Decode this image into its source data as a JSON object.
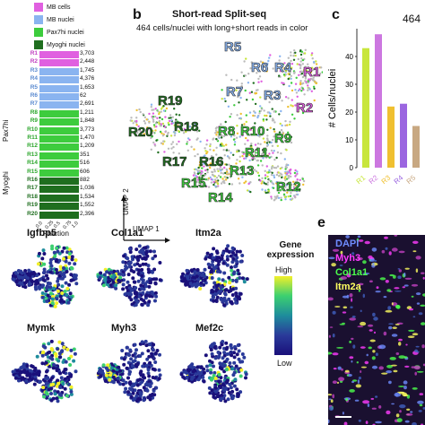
{
  "legend": [
    {
      "label": "MB cells",
      "color": "#e060e0"
    },
    {
      "label": "MB nuclei",
      "color": "#8ab4f0"
    },
    {
      "label": "Pax7hi nuclei",
      "color": "#3dcc3d"
    },
    {
      "label": "Myoghi nuclei",
      "color": "#1f6e1f"
    }
  ],
  "panel_a": {
    "rows": [
      {
        "label": "R1",
        "count": "3,703",
        "color": "#e060e0"
      },
      {
        "label": "R2",
        "count": "2,448",
        "color": "#e060e0"
      },
      {
        "label": "R3",
        "count": "1,745",
        "color": "#8ab4f0"
      },
      {
        "label": "R4",
        "count": "4,376",
        "color": "#8ab4f0"
      },
      {
        "label": "R5",
        "count": "1,653",
        "color": "#8ab4f0"
      },
      {
        "label": "R6",
        "count": "62",
        "color": "#8ab4f0"
      },
      {
        "label": "R7",
        "count": "2,691",
        "color": "#8ab4f0"
      },
      {
        "label": "R8",
        "count": "1,211",
        "color": "#3dcc3d"
      },
      {
        "label": "R9",
        "count": "1,848",
        "color": "#3dcc3d"
      },
      {
        "label": "R10",
        "count": "3,773",
        "color": "#3dcc3d"
      },
      {
        "label": "R11",
        "count": "1,470",
        "color": "#3dcc3d"
      },
      {
        "label": "R12",
        "count": "1,209",
        "color": "#3dcc3d"
      },
      {
        "label": "R13",
        "count": "351",
        "color": "#3dcc3d"
      },
      {
        "label": "R14",
        "count": "516",
        "color": "#3dcc3d"
      },
      {
        "label": "R15",
        "count": "606",
        "color": "#3dcc3d"
      },
      {
        "label": "R16",
        "count": "882",
        "color": "#1f6e1f"
      },
      {
        "label": "R17",
        "count": "1,036",
        "color": "#1f6e1f"
      },
      {
        "label": "R18",
        "count": "1,534",
        "color": "#1f6e1f"
      },
      {
        "label": "R19",
        "count": "1,552",
        "color": "#1f6e1f"
      },
      {
        "label": "R20",
        "count": "2,396",
        "color": "#1f6e1f"
      }
    ],
    "group_pax7": "Pax7hi",
    "group_myog": "Myoghi",
    "xticks": [
      "0.0",
      "0.25",
      "0.5",
      "0.75",
      "1.0"
    ],
    "xlabel": "Fraction"
  },
  "panel_b": {
    "letter": "b",
    "title": "Short-read Split-seq",
    "subtitle": "464 cells/nuclei with long+short reads in color",
    "umap1": "UMAP 1",
    "umap2": "UMAP 2",
    "cluster_labels": [
      {
        "label": "R1",
        "color": "#e060e0"
      },
      {
        "label": "R2",
        "color": "#e060e0"
      },
      {
        "label": "R3",
        "color": "#8ab4f0"
      },
      {
        "label": "R4",
        "color": "#8ab4f0"
      },
      {
        "label": "R5",
        "color": "#8ab4f0"
      },
      {
        "label": "R6",
        "color": "#8ab4f0"
      },
      {
        "label": "R7",
        "color": "#8ab4f0"
      },
      {
        "label": "R8",
        "color": "#3dcc3d"
      },
      {
        "label": "R9",
        "color": "#3dcc3d"
      },
      {
        "label": "R10",
        "color": "#3dcc3d"
      },
      {
        "label": "R11",
        "color": "#3dcc3d"
      },
      {
        "label": "R12",
        "color": "#3dcc3d"
      },
      {
        "label": "R13",
        "color": "#3dcc3d"
      },
      {
        "label": "R14",
        "color": "#3dcc3d"
      },
      {
        "label": "R15",
        "color": "#3dcc3d"
      },
      {
        "label": "R16",
        "color": "#1f6e1f"
      },
      {
        "label": "R17",
        "color": "#1f6e1f"
      },
      {
        "label": "R18",
        "color": "#1f6e1f"
      },
      {
        "label": "R19",
        "color": "#1f6e1f"
      },
      {
        "label": "R20",
        "color": "#1f6e1f"
      }
    ]
  },
  "panel_c": {
    "letter": "c",
    "top_label": "464",
    "ylabel": "# Cells/nuclei",
    "chart_data": {
      "type": "bar",
      "categories": [
        "R1",
        "R2",
        "R3",
        "R4",
        "R5"
      ],
      "values": [
        43,
        48,
        22,
        23,
        15
      ],
      "colors": [
        "#c8e63c",
        "#cc77e0",
        "#f0c030",
        "#9b66e0",
        "#c8a882"
      ],
      "yticks": [
        0,
        10,
        20,
        30,
        40
      ],
      "ylim": [
        0,
        50
      ]
    }
  },
  "panel_d": {
    "genes": [
      "Igfbp5",
      "Col1a1",
      "Itm2a",
      "Mymk",
      "Myh3",
      "Mef2c"
    ],
    "colorbar_title": "Gene\nexpression",
    "high": "High",
    "low": "Low"
  },
  "panel_e": {
    "letter": "e",
    "stains": [
      {
        "label": "DAPI",
        "color": "#6e8cff"
      },
      {
        "label": "Myh3",
        "color": "#ff3cff"
      },
      {
        "label": "Col1a1",
        "color": "#4cff4c"
      },
      {
        "label": "Itm2a",
        "color": "#ffff60"
      }
    ]
  }
}
